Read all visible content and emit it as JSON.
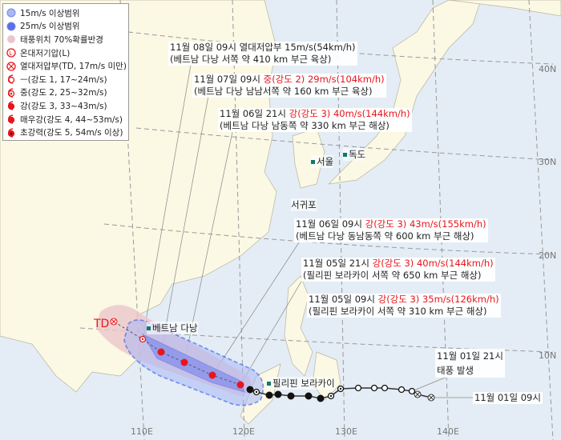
{
  "legend": [
    {
      "icon": "circle-light-blue-icon",
      "label": "15m/s 이상범위",
      "color": "#a9b7f5"
    },
    {
      "icon": "circle-blue-icon",
      "label": "25m/s 이상범위",
      "color": "#5b6ef0"
    },
    {
      "icon": "circle-pink-icon",
      "label": "태풍위치 70%확률반경",
      "color": "#ecc5cc"
    },
    {
      "icon": "extratropical-low-icon",
      "label": "온대저기압(L)"
    },
    {
      "icon": "tropical-depression-icon",
      "label": "열대저압부(TD, 17m/s 미만)"
    },
    {
      "icon": "typhoon-intensity-1-icon",
      "label": "ㅡ(강도 1, 17~24m/s)"
    },
    {
      "icon": "typhoon-intensity-2-icon",
      "label": "중(강도 2, 25~32m/s)"
    },
    {
      "icon": "typhoon-intensity-3-icon",
      "label": "강(강도 3, 33~43m/s)"
    },
    {
      "icon": "typhoon-intensity-4-icon",
      "label": "매우강(강도 4, 44~53m/s)"
    },
    {
      "icon": "typhoon-intensity-5-icon",
      "label": "초강력(강도 5, 54m/s 이상)"
    }
  ],
  "forecasts": [
    {
      "time": "11월 08일 09시",
      "intensity": "열대저압부 15m/s(54km/h)",
      "intensity_red": false,
      "location": "(베트남 다낭 서쪽 약 410 km 부근 육상)"
    },
    {
      "time": "11월 07일 09시",
      "intensity": "중(강도 2) 29m/s(104km/h)",
      "intensity_red": true,
      "location": "(베트남 다낭 남남서쪽 약 160 km 부근 육상)"
    },
    {
      "time": "11월 06일 21시",
      "intensity": "강(강도 3) 40m/s(144km/h)",
      "intensity_red": true,
      "location": "(베트남 다낭 남동쪽 약 330 km 부근 해상)"
    },
    {
      "time": "11월 06일 09시",
      "intensity": "강(강도 3) 43m/s(155km/h)",
      "intensity_red": true,
      "location": "(베트남 다낭 동남동쪽 약 600 km 부근 해상)"
    },
    {
      "time": "11월 05일 21시",
      "intensity": "강(강도 3) 40m/s(144km/h)",
      "intensity_red": true,
      "location": "(필리핀 보라카이 서쪽 약 650 km 부근 해상)"
    },
    {
      "time": "11월 05일 09시",
      "intensity": "강(강도 3) 35m/s(126km/h)",
      "intensity_red": true,
      "location": "(필리핀 보라카이 서쪽 약 310 km 부근 해상)"
    }
  ],
  "genesis": {
    "time": "11월 01일 21시",
    "label": "태풍 발생"
  },
  "start": {
    "time": "11월 01일 09시"
  },
  "td_label": "TD",
  "places": {
    "danang": "베트남 다낭",
    "boracay": "필리핀 보라카이",
    "seoul": "서울",
    "dokdo": "독도",
    "seogwipo": "서귀포"
  },
  "grid": {
    "lat": [
      "40N",
      "30N",
      "20N",
      "10N"
    ],
    "lon": [
      "110E",
      "120E",
      "130E",
      "140E"
    ]
  },
  "colors": {
    "sea": "#e4edf5",
    "land": "#fbf8e4",
    "track_red": "#e8151b",
    "cone_blue": "#1a4de8"
  }
}
